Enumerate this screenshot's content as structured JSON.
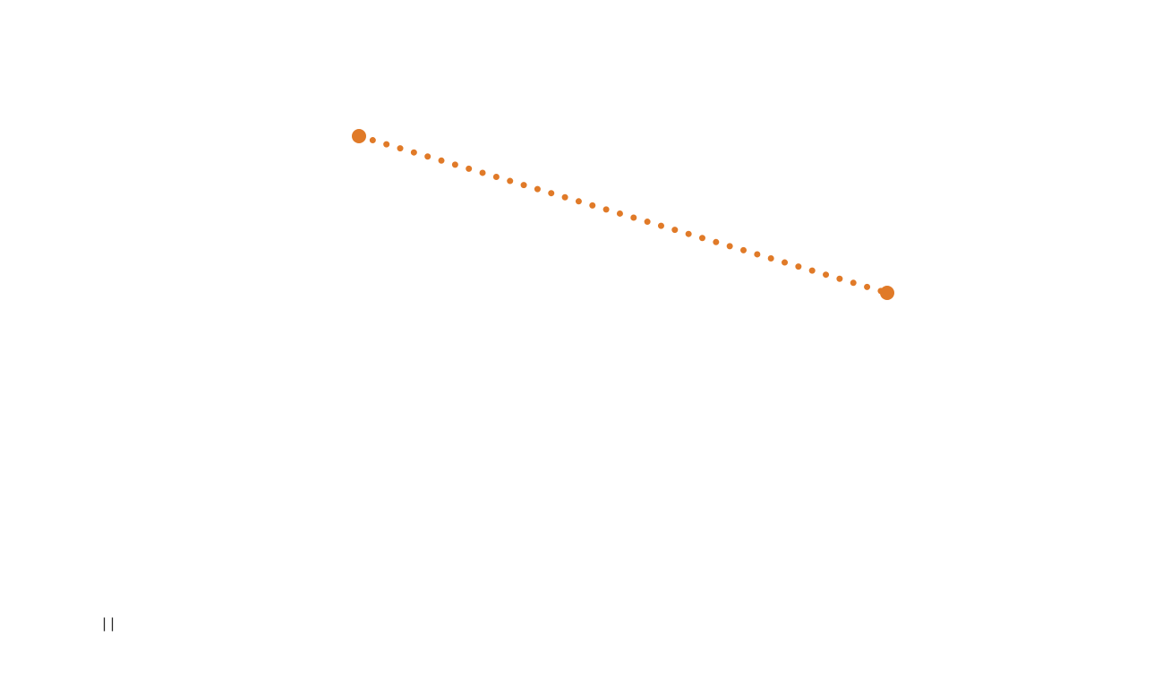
{
  "canvas": {
    "background_color": "#ffffff"
  },
  "connector": {
    "color": "#E07A28",
    "line_style": "dotted",
    "start_handle_icon": "circle-endpoint-icon",
    "end_handle_icon": "circle-endpoint-icon"
  },
  "status": {
    "indicator_text": "||",
    "indicator_icon": "pause-icon"
  }
}
